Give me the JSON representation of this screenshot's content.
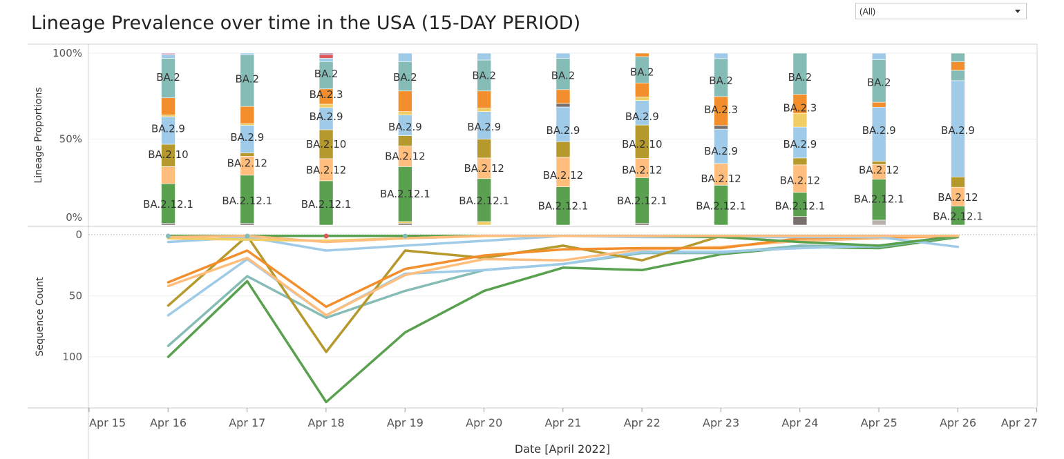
{
  "header": {
    "title": "Lineage Prevalence over time in the USA (15-DAY PERIOD)"
  },
  "filter": {
    "selected": "(All)"
  },
  "colors": {
    "BA.2": "#86bcb6",
    "BA.2.3": "#f28e2b",
    "BA.2.9": "#a0cbe8",
    "BA.2.10": "#b6992d",
    "BA.2.12": "#ffbe7d",
    "BA.2.12.1": "#59a14f",
    "other_gray": "#79706e",
    "other_yellow": "#f1ce63",
    "other_lightgray": "#bab0ac",
    "other_red": "#e15759",
    "other_pink": "#d4a6c8",
    "other_purple": "#b07aa1"
  },
  "chart_data": [
    {
      "type": "bar",
      "stacked": true,
      "ylabel": "Lineage Proportions",
      "yticks": [
        "100%",
        "50%",
        "0%"
      ],
      "categories": [
        "Apr 16",
        "Apr 17",
        "Apr 18",
        "Apr 19",
        "Apr 20",
        "Apr 21",
        "Apr 22",
        "Apr 23",
        "Apr 24",
        "Apr 25",
        "Apr 26"
      ],
      "columns": [
        {
          "x": "Apr 16",
          "segments": [
            {
              "lineage": "other_gray",
              "value": 1
            },
            {
              "lineage": "BA.2.12.1",
              "value": 23
            },
            {
              "lineage": "BA.2.12",
              "value": 10
            },
            {
              "lineage": "BA.2.10",
              "value": 13
            },
            {
              "lineage": "BA.2.9",
              "value": 16
            },
            {
              "lineage": "other_yellow",
              "value": 1
            },
            {
              "lineage": "BA.2.3",
              "value": 10
            },
            {
              "lineage": "BA.2",
              "value": 23
            },
            {
              "lineage": "BA.2.9",
              "value": 2
            },
            {
              "lineage": "other_pink",
              "value": 1
            }
          ],
          "labels": [
            {
              "text": "BA.2.12.1",
              "at": 12
            },
            {
              "text": "BA.2.10",
              "at": 41
            },
            {
              "text": "BA.2.9",
              "at": 56
            },
            {
              "text": "BA.2",
              "at": 86
            }
          ]
        },
        {
          "x": "Apr 17",
          "segments": [
            {
              "lineage": "other_gray",
              "value": 1
            },
            {
              "lineage": "BA.2.12.1",
              "value": 28
            },
            {
              "lineage": "BA.2.12",
              "value": 11
            },
            {
              "lineage": "BA.2.10",
              "value": 2
            },
            {
              "lineage": "BA.2.9",
              "value": 16
            },
            {
              "lineage": "other_yellow",
              "value": 1
            },
            {
              "lineage": "BA.2.3",
              "value": 10
            },
            {
              "lineage": "BA.2",
              "value": 30
            },
            {
              "lineage": "BA.2.9",
              "value": 1
            }
          ],
          "labels": [
            {
              "text": "BA.2.12.1",
              "at": 14
            },
            {
              "text": "BA.2.12",
              "at": 36
            },
            {
              "text": "BA.2.9",
              "at": 51
            },
            {
              "text": "BA.2",
              "at": 85
            }
          ]
        },
        {
          "x": "Apr 18",
          "segments": [
            {
              "lineage": "BA.2.12.1",
              "value": 26
            },
            {
              "lineage": "BA.2.12",
              "value": 13
            },
            {
              "lineage": "BA.2.10",
              "value": 17
            },
            {
              "lineage": "BA.2.9",
              "value": 13
            },
            {
              "lineage": "other_yellow",
              "value": 2
            },
            {
              "lineage": "BA.2.3",
              "value": 9
            },
            {
              "lineage": "BA.2",
              "value": 16
            },
            {
              "lineage": "BA.2.9",
              "value": 2
            },
            {
              "lineage": "other_red",
              "value": 2
            },
            {
              "lineage": "other_purple",
              "value": 1
            }
          ],
          "labels": [
            {
              "text": "BA.2.12.1",
              "at": 12
            },
            {
              "text": "BA.2.12",
              "at": 32
            },
            {
              "text": "BA.2.10",
              "at": 47
            },
            {
              "text": "BA.2.9",
              "at": 63
            },
            {
              "text": "BA.2.3",
              "at": 76
            },
            {
              "text": "BA.2",
              "at": 88
            }
          ]
        },
        {
          "x": "Apr 19",
          "segments": [
            {
              "lineage": "other_gray",
              "value": 1
            },
            {
              "lineage": "other_yellow",
              "value": 1
            },
            {
              "lineage": "BA.2.12.1",
              "value": 32
            },
            {
              "lineage": "BA.2.12",
              "value": 12
            },
            {
              "lineage": "BA.2.10",
              "value": 6
            },
            {
              "lineage": "BA.2.9",
              "value": 12
            },
            {
              "lineage": "other_yellow",
              "value": 2
            },
            {
              "lineage": "BA.2.3",
              "value": 12
            },
            {
              "lineage": "BA.2",
              "value": 17
            },
            {
              "lineage": "BA.2.9",
              "value": 5
            }
          ],
          "labels": [
            {
              "text": "BA.2.12.1",
              "at": 18
            },
            {
              "text": "BA.2.12",
              "at": 40
            },
            {
              "text": "BA.2.9",
              "at": 57
            },
            {
              "text": "BA.2",
              "at": 86
            }
          ]
        },
        {
          "x": "Apr 20",
          "segments": [
            {
              "lineage": "other_yellow",
              "value": 2
            },
            {
              "lineage": "BA.2.12.1",
              "value": 25
            },
            {
              "lineage": "BA.2.12",
              "value": 12
            },
            {
              "lineage": "BA.2.10",
              "value": 11
            },
            {
              "lineage": "BA.2.9",
              "value": 16
            },
            {
              "lineage": "other_yellow",
              "value": 2
            },
            {
              "lineage": "BA.2.3",
              "value": 10
            },
            {
              "lineage": "BA.2",
              "value": 18
            },
            {
              "lineage": "BA.2.9",
              "value": 4
            }
          ],
          "labels": [
            {
              "text": "BA.2.12.1",
              "at": 14
            },
            {
              "text": "BA.2.12",
              "at": 33
            },
            {
              "text": "BA.2.9",
              "at": 57
            },
            {
              "text": "BA.2",
              "at": 87
            }
          ]
        },
        {
          "x": "Apr 21",
          "segments": [
            {
              "lineage": "BA.2.12.1",
              "value": 22
            },
            {
              "lineage": "BA.2.12",
              "value": 17
            },
            {
              "lineage": "BA.2.10",
              "value": 9
            },
            {
              "lineage": "BA.2.9",
              "value": 20
            },
            {
              "lineage": "other_gray",
              "value": 2
            },
            {
              "lineage": "BA.2.3",
              "value": 8
            },
            {
              "lineage": "BA.2",
              "value": 18
            },
            {
              "lineage": "BA.2.9",
              "value": 3
            }
          ],
          "labels": [
            {
              "text": "BA.2.12.1",
              "at": 11
            },
            {
              "text": "BA.2.12",
              "at": 29
            },
            {
              "text": "BA.2.9",
              "at": 55
            },
            {
              "text": "BA.2",
              "at": 87
            }
          ]
        },
        {
          "x": "Apr 22",
          "segments": [
            {
              "lineage": "other_gray",
              "value": 1
            },
            {
              "lineage": "BA.2.12.1",
              "value": 26
            },
            {
              "lineage": "BA.2.12",
              "value": 11
            },
            {
              "lineage": "BA.2.10",
              "value": 19
            },
            {
              "lineage": "BA.2.9",
              "value": 14
            },
            {
              "lineage": "other_yellow",
              "value": 2
            },
            {
              "lineage": "BA.2.3",
              "value": 8
            },
            {
              "lineage": "BA.2",
              "value": 15
            },
            {
              "lineage": "BA.2.3",
              "value": 2
            }
          ],
          "labels": [
            {
              "text": "BA.2.12.1",
              "at": 14
            },
            {
              "text": "BA.2.12",
              "at": 32
            },
            {
              "text": "BA.2.10",
              "at": 47
            },
            {
              "text": "BA.2.9",
              "at": 63
            },
            {
              "text": "BA.2",
              "at": 89
            }
          ]
        },
        {
          "x": "Apr 23",
          "segments": [
            {
              "lineage": "BA.2.12.1",
              "value": 22
            },
            {
              "lineage": "BA.2.12",
              "value": 12
            },
            {
              "lineage": "BA.2.9",
              "value": 19
            },
            {
              "lineage": "other_gray",
              "value": 2
            },
            {
              "lineage": "BA.2.3",
              "value": 16
            },
            {
              "lineage": "BA.2",
              "value": 21
            },
            {
              "lineage": "BA.2.9",
              "value": 3
            }
          ],
          "labels": [
            {
              "text": "BA.2.12.1",
              "at": 11
            },
            {
              "text": "BA.2.12",
              "at": 27
            },
            {
              "text": "BA.2.9",
              "at": 43
            },
            {
              "text": "BA.2.3",
              "at": 67
            },
            {
              "text": "BA.2",
              "at": 84
            }
          ]
        },
        {
          "x": "Apr 24",
          "segments": [
            {
              "lineage": "other_gray",
              "value": 5
            },
            {
              "lineage": "BA.2.12.1",
              "value": 14
            },
            {
              "lineage": "BA.2.12",
              "value": 16
            },
            {
              "lineage": "BA.2.10",
              "value": 4
            },
            {
              "lineage": "BA.2.9",
              "value": 18
            },
            {
              "lineage": "other_yellow",
              "value": 8
            },
            {
              "lineage": "BA.2.3",
              "value": 11
            },
            {
              "lineage": "BA.2",
              "value": 24
            }
          ],
          "labels": [
            {
              "text": "BA.2.12.1",
              "at": 11
            },
            {
              "text": "BA.2.12",
              "at": 26
            },
            {
              "text": "BA.2.9",
              "at": 47
            },
            {
              "text": "BA.2.3",
              "at": 68
            },
            {
              "text": "BA.2",
              "at": 86
            }
          ]
        },
        {
          "x": "Apr 25",
          "segments": [
            {
              "lineage": "other_lightgray",
              "value": 3
            },
            {
              "lineage": "BA.2.12.1",
              "value": 25
            },
            {
              "lineage": "BA.2.12",
              "value": 9
            },
            {
              "lineage": "BA.2.10",
              "value": 2
            },
            {
              "lineage": "BA.2.9",
              "value": 33
            },
            {
              "lineage": "BA.2.3",
              "value": 3
            },
            {
              "lineage": "BA.2",
              "value": 26
            },
            {
              "lineage": "BA.2.9",
              "value": 4
            }
          ],
          "labels": [
            {
              "text": "BA.2.12.1",
              "at": 15
            },
            {
              "text": "BA.2.12",
              "at": 32
            },
            {
              "text": "BA.2.9",
              "at": 55
            },
            {
              "text": "BA.2",
              "at": 83
            }
          ]
        },
        {
          "x": "Apr 26",
          "segments": [
            {
              "lineage": "BA.2.12.1",
              "value": 11
            },
            {
              "lineage": "BA.2.12",
              "value": 11
            },
            {
              "lineage": "BA.2.10",
              "value": 6
            },
            {
              "lineage": "BA.2.9",
              "value": 56
            },
            {
              "lineage": "BA.2",
              "value": 6
            },
            {
              "lineage": "BA.2.3",
              "value": 5
            },
            {
              "lineage": "BA.2",
              "value": 5
            }
          ],
          "labels": [
            {
              "text": "BA.2.12.1",
              "at": 5
            },
            {
              "text": "BA.2.12",
              "at": 16
            },
            {
              "text": "BA.2.9",
              "at": 55
            }
          ]
        }
      ]
    },
    {
      "type": "line",
      "ylabel": "Sequence Count",
      "y_reversed": true,
      "yticks": [
        "0",
        "50",
        "100"
      ],
      "ylim": [
        0,
        140
      ],
      "xlabel": "Date [April 2022]",
      "xticks": [
        "Apr 15",
        "Apr 16",
        "Apr 17",
        "Apr 18",
        "Apr 19",
        "Apr 20",
        "Apr 21",
        "Apr 22",
        "Apr 23",
        "Apr 24",
        "Apr 25",
        "Apr 26",
        "Apr 27"
      ],
      "x": [
        "Apr 16",
        "Apr 17",
        "Apr 18",
        "Apr 19",
        "Apr 20",
        "Apr 21",
        "Apr 22",
        "Apr 23",
        "Apr 24",
        "Apr 25",
        "Apr 26"
      ],
      "series": [
        {
          "lineage": "BA.2.12.1",
          "values": [
            100,
            38,
            137,
            80,
            46,
            27,
            29,
            16,
            10,
            11,
            2
          ]
        },
        {
          "lineage": "BA.2",
          "values": [
            91,
            34,
            68,
            46,
            29,
            24,
            15,
            15,
            9,
            10,
            1
          ]
        },
        {
          "lineage": "BA.2.9",
          "values": [
            66,
            20,
            66,
            32,
            29,
            24,
            14,
            14,
            11,
            9,
            1
          ]
        },
        {
          "lineage": "BA.2.10",
          "values": [
            58,
            1,
            96,
            13,
            19,
            9,
            21,
            1,
            1,
            1,
            1
          ]
        },
        {
          "lineage": "BA.2.12",
          "values": [
            42,
            19,
            66,
            33,
            20,
            21,
            12,
            10,
            5,
            3,
            1
          ]
        },
        {
          "lineage": "BA.2.3",
          "values": [
            39,
            13,
            59,
            28,
            17,
            12,
            11,
            11,
            3,
            2,
            1
          ]
        },
        {
          "lineage": "BA.2.9",
          "values": [
            6,
            2,
            13,
            9,
            5,
            1,
            2,
            2,
            2,
            2,
            10
          ]
        },
        {
          "lineage": "BA.2.12.1",
          "values": [
            1,
            1,
            1,
            1,
            1,
            1,
            1,
            2,
            6,
            9,
            1
          ]
        },
        {
          "lineage": "other_yellow",
          "values": [
            3,
            4,
            5,
            3,
            1,
            1,
            1,
            1,
            1,
            1,
            1
          ]
        },
        {
          "lineage": "BA.2.12",
          "values": [
            2,
            1,
            6,
            3,
            1,
            1,
            1,
            1,
            1,
            1,
            1
          ]
        }
      ]
    }
  ]
}
